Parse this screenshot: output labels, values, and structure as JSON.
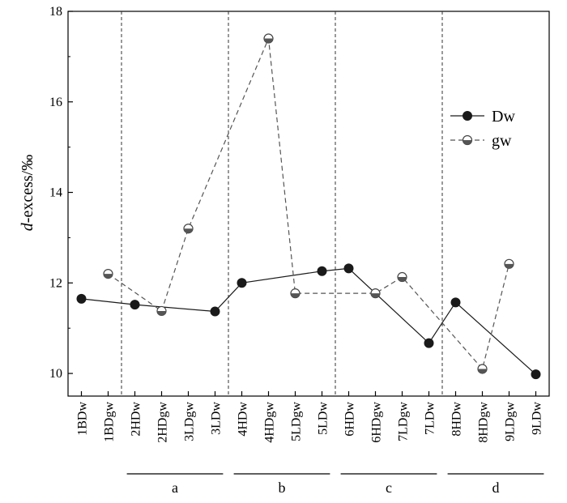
{
  "chart_data": {
    "type": "line",
    "title": "",
    "xlabel": "",
    "ylabel_prefix": "d",
    "ylabel_suffix": "-excess/‰",
    "ylim": [
      9.5,
      18
    ],
    "yticks": [
      10,
      12,
      14,
      16,
      18
    ],
    "grid": false,
    "legend_position": "top-right",
    "categories": [
      "1BDw",
      "1BDgw",
      "2HDw",
      "2HDgw",
      "3LDgw",
      "3LDw",
      "4HDw",
      "4HDgw",
      "5LDgw",
      "5LDw",
      "6HDw",
      "6HDgw",
      "7LDgw",
      "7LDw",
      "8HDw",
      "8HDgw",
      "9LDgw",
      "9LDw"
    ],
    "separators_after_index": [
      1,
      5,
      9,
      13
    ],
    "groups": [
      {
        "label": "a",
        "from": 2,
        "to": 5
      },
      {
        "label": "b",
        "from": 6,
        "to": 9
      },
      {
        "label": "c",
        "from": 10,
        "to": 13
      },
      {
        "label": "d",
        "from": 14,
        "to": 17
      }
    ],
    "series": [
      {
        "name": "Dw",
        "style": "solid",
        "marker": "filled-circle",
        "color": "#1a1a1a",
        "points": [
          {
            "x": "1BDw",
            "y": 11.65
          },
          {
            "x": "2HDw",
            "y": 11.52
          },
          {
            "x": "3LDw",
            "y": 11.37
          },
          {
            "x": "4HDw",
            "y": 12.0
          },
          {
            "x": "5LDw",
            "y": 12.26
          },
          {
            "x": "6HDw",
            "y": 12.32
          },
          {
            "x": "7LDw",
            "y": 10.67
          },
          {
            "x": "8HDw",
            "y": 11.57
          },
          {
            "x": "9LDw",
            "y": 9.98
          }
        ]
      },
      {
        "name": "gw",
        "style": "dashed",
        "marker": "half-filled-circle",
        "color": "#555555",
        "points": [
          {
            "x": "1BDgw",
            "y": 12.2
          },
          {
            "x": "2HDgw",
            "y": 11.38
          },
          {
            "x": "3LDgw",
            "y": 13.2
          },
          {
            "x": "4HDgw",
            "y": 17.4
          },
          {
            "x": "5LDgw",
            "y": 11.77
          },
          {
            "x": "6HDgw",
            "y": 11.77
          },
          {
            "x": "7LDgw",
            "y": 12.13
          },
          {
            "x": "8HDgw",
            "y": 10.1
          },
          {
            "x": "9LDgw",
            "y": 12.42
          }
        ]
      }
    ]
  }
}
